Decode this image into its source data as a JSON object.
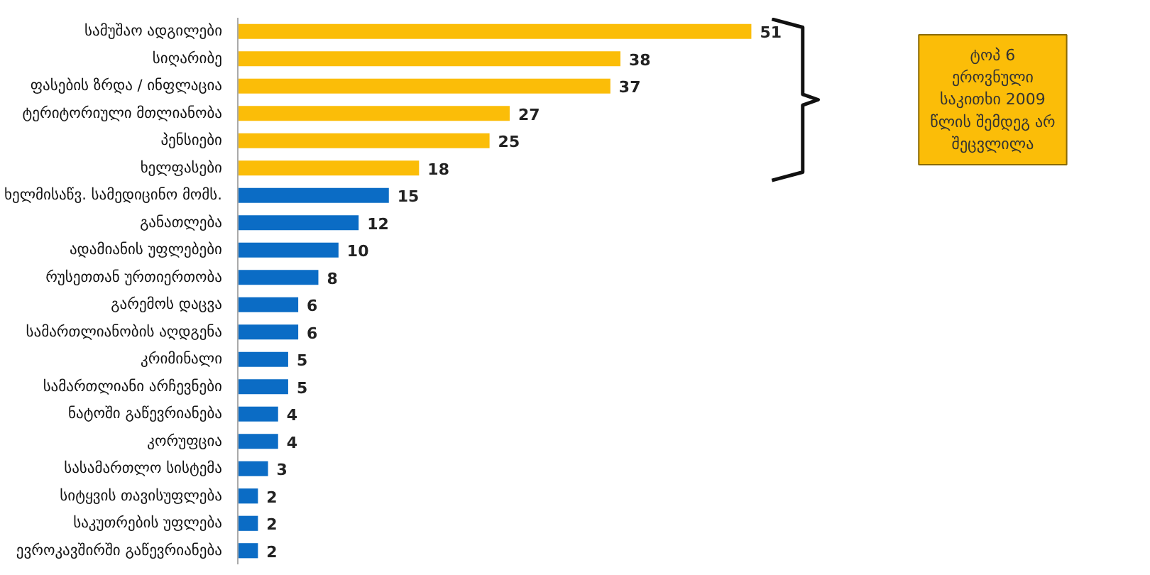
{
  "chart_data": {
    "type": "bar",
    "orientation": "horizontal",
    "categories": [
      "სამუშაო ადგილები",
      "სიღარიბე",
      "ფასების ზრდა / ინფლაცია",
      "ტერიტორიული მთლიანობა",
      "პენსიები",
      "ხელფასები",
      "ხელმისაწვ. სამედიცინო მომს.",
      "განათლება",
      "ადამიანის უფლებები",
      "რუსეთთან ურთიერთობა",
      "გარემოს დაცვა",
      "სამართლიანობის აღდგენა",
      "კრიმინალი",
      "სამართლიანი არჩევნები",
      "ნატოში გაწევრიანება",
      "კორუფცია",
      "სასამართლო სისტემა",
      "სიტყვის თავისუფლება",
      "საკუთრების უფლება",
      "ევროკავშირში გაწევრიანება"
    ],
    "values": [
      51,
      38,
      37,
      27,
      25,
      18,
      15,
      12,
      10,
      8,
      6,
      6,
      5,
      5,
      4,
      4,
      3,
      2,
      2,
      2
    ],
    "colors": [
      "#fbbd08",
      "#fbbd08",
      "#fbbd08",
      "#fbbd08",
      "#fbbd08",
      "#fbbd08",
      "#0b6cc5",
      "#0b6cc5",
      "#0b6cc5",
      "#0b6cc5",
      "#0b6cc5",
      "#0b6cc5",
      "#0b6cc5",
      "#0b6cc5",
      "#0b6cc5",
      "#0b6cc5",
      "#0b6cc5",
      "#0b6cc5",
      "#0b6cc5",
      "#0b6cc5"
    ],
    "data_labels": true,
    "annotations": [
      "ტოპ 6\nეროვნული\nსაკითხი 2009\nწლის შემდეგ არ\nშეცვლილა"
    ]
  }
}
